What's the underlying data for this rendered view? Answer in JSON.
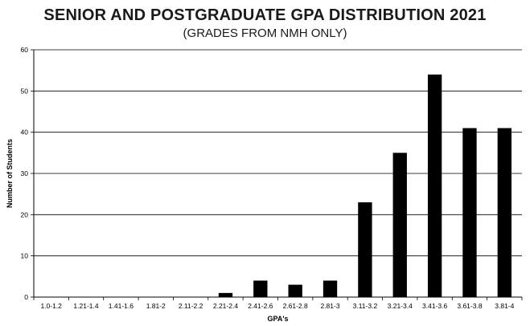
{
  "chart_data": {
    "type": "bar",
    "title": "SENIOR AND POSTGRADUATE GPA DISTRIBUTION 2021",
    "subtitle": "(GRADES FROM NMH ONLY)",
    "xlabel": "GPA's",
    "ylabel": "Number of Students",
    "ylim": [
      0,
      60
    ],
    "yticks": [
      0,
      10,
      20,
      30,
      40,
      50,
      60
    ],
    "grid": true,
    "bar_color": "#000000",
    "categories": [
      "1.0-1.2",
      "1.21-1.4",
      "1.41-1.6",
      "1.81-2",
      "2.11-2.2",
      "2.21-2.4",
      "2.41-2.6",
      "2.61-2.8",
      "2.81-3",
      "3.11-3.2",
      "3.21-3.4",
      "3.41-3.6",
      "3.61-3.8",
      "3.81-4"
    ],
    "values": [
      0,
      0,
      0,
      0,
      0,
      1,
      4,
      3,
      4,
      23,
      35,
      54,
      41,
      41
    ]
  }
}
